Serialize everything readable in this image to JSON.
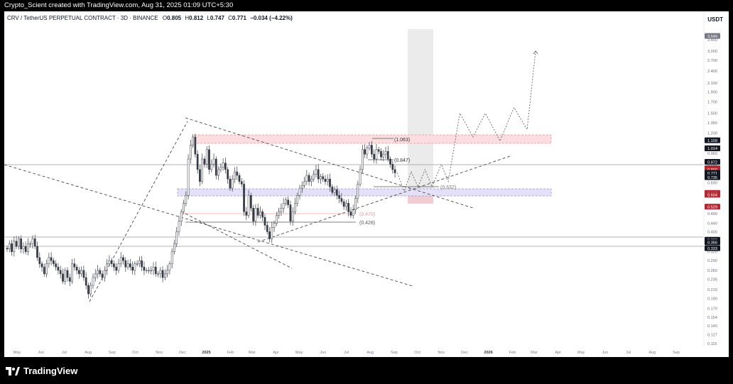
{
  "header": {
    "caption": "Crypto_Scient created with TradingView.com, Aug 31, 2025 01:09 UTC+5:30"
  },
  "symbol": {
    "title": "CRV / TetherUS PERPETUAL CONTRACT · 3D · BINANCE",
    "o_label": "O",
    "o_value": "0.805",
    "h_label": "H",
    "h_value": "0.812",
    "l_label": "L",
    "l_value": "0.747",
    "c_label": "C",
    "c_value": "0.771",
    "change": "−0.034 (−4.22%)",
    "currency": "USDT"
  },
  "brand": {
    "name": "TradingView"
  },
  "colors": {
    "up": "#ffffff",
    "down": "#363a45",
    "resistance_zone": "#f7c5c9",
    "support_zone": "#d6d3f2",
    "projection_zone": "#e0e0e0",
    "price_tag": "#b22833"
  },
  "chart_data": {
    "type": "candlestick",
    "y_scale": "log",
    "ylim": [
      0.115,
      3.8
    ],
    "x_tick_labels": [
      "May",
      "Jun",
      "Jul",
      "Aug",
      "Sep",
      "Oct",
      "Nov",
      "Dec",
      "2025",
      "Feb",
      "Mar",
      "Apr",
      "May",
      "Jun",
      "Jul",
      "Aug",
      "Sep",
      "Oct",
      "Nov",
      "Dec",
      "2026",
      "Feb",
      "Mar",
      "Apr",
      "May",
      "Jun",
      "Jul",
      "Aug",
      "Sep"
    ],
    "y_tick_labels": [
      "3.400",
      "3.000",
      "2.700",
      "2.400",
      "2.100",
      "1.900",
      "1.700",
      "1.500",
      "1.350",
      "1.200",
      "0.960",
      "0.850",
      "0.690",
      "0.490",
      "0.440",
      "0.400",
      "0.320",
      "0.290",
      "0.260",
      "0.235",
      "0.210",
      "0.190",
      "0.170",
      "0.154",
      "0.140",
      "0.127",
      "0.115"
    ],
    "price_tags": [
      "3.549",
      "1.109",
      "1.015",
      "1.014",
      "0.872",
      "0.812",
      "0.800",
      "0.771",
      "0.735",
      "0.617",
      "0.604",
      "0.529",
      "0.366",
      "0.356",
      "0.333"
    ],
    "annotations": [
      "(1.063)",
      "(0.847)",
      "(0.632)",
      "(0.470)",
      "(0.428)"
    ],
    "closes": [
      0.33,
      0.35,
      0.32,
      0.36,
      0.34,
      0.37,
      0.33,
      0.34,
      0.32,
      0.35,
      0.35,
      0.37,
      0.34,
      0.3,
      0.28,
      0.27,
      0.25,
      0.28,
      0.3,
      0.29,
      0.28,
      0.27,
      0.26,
      0.25,
      0.23,
      0.26,
      0.24,
      0.23,
      0.28,
      0.27,
      0.26,
      0.25,
      0.26,
      0.24,
      0.22,
      0.2,
      0.22,
      0.24,
      0.25,
      0.26,
      0.25,
      0.24,
      0.26,
      0.28,
      0.29,
      0.28,
      0.27,
      0.26,
      0.28,
      0.3,
      0.29,
      0.27,
      0.28,
      0.27,
      0.26,
      0.28,
      0.28,
      0.29,
      0.27,
      0.26,
      0.26,
      0.26,
      0.26,
      0.27,
      0.25,
      0.25,
      0.26,
      0.24,
      0.25,
      0.26,
      0.28,
      0.32,
      0.35,
      0.4,
      0.45,
      0.5,
      0.55,
      0.6,
      0.9,
      1.05,
      1.15,
      0.95,
      0.8,
      0.7,
      0.9,
      0.85,
      1.0,
      0.8,
      0.85,
      0.9,
      0.75,
      0.8,
      0.82,
      0.86,
      0.8,
      0.72,
      0.65,
      0.72,
      0.78,
      0.75,
      0.7,
      0.68,
      0.5,
      0.48,
      0.6,
      0.52,
      0.45,
      0.52,
      0.48,
      0.5,
      0.47,
      0.43,
      0.4,
      0.37,
      0.42,
      0.44,
      0.48,
      0.5,
      0.52,
      0.55,
      0.57,
      0.54,
      0.45,
      0.5,
      0.55,
      0.6,
      0.65,
      0.67,
      0.7,
      0.75,
      0.7,
      0.72,
      0.76,
      0.8,
      0.72,
      0.74,
      0.72,
      0.7,
      0.72,
      0.66,
      0.62,
      0.64,
      0.6,
      0.58,
      0.56,
      0.53,
      0.55,
      0.5,
      0.48,
      0.51,
      0.58,
      0.68,
      0.8,
      1.0,
      0.95,
      1.02,
      1.05,
      0.95,
      0.9,
      1.0,
      0.98,
      0.92,
      0.95,
      0.98,
      0.9,
      0.85,
      0.8,
      0.771
    ],
    "projection_path": [
      [
        "2025-09-05",
        0.771
      ],
      [
        "2025-09-14",
        0.63
      ],
      [
        "2025-09-23",
        0.78
      ],
      [
        "2025-10-02",
        0.66
      ],
      [
        "2025-10-11",
        0.8
      ],
      [
        "2025-10-20",
        0.66
      ],
      [
        "2025-11-01",
        0.85
      ],
      [
        "2025-11-10",
        0.7
      ],
      [
        "2025-11-25",
        1.5
      ],
      [
        "2025-12-12",
        1.15
      ],
      [
        "2025-12-28",
        1.5
      ],
      [
        "2026-01-16",
        1.1
      ],
      [
        "2026-02-03",
        1.6
      ],
      [
        "2026-02-20",
        1.25
      ],
      [
        "2026-03-03",
        3.0
      ]
    ]
  }
}
